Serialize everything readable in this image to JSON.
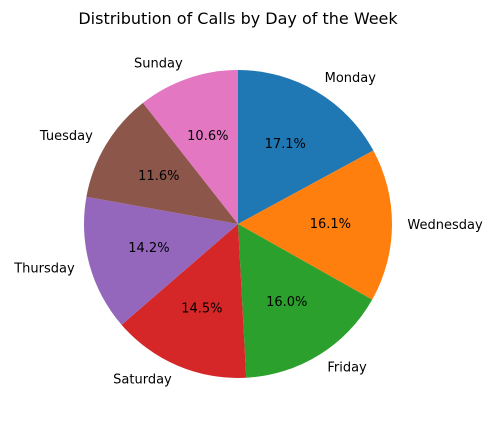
{
  "chart_data": {
    "type": "pie",
    "title": "Distribution of Calls by Day of the Week",
    "categories": [
      "Monday",
      "Wednesday",
      "Friday",
      "Saturday",
      "Thursday",
      "Tuesday",
      "Sunday"
    ],
    "values": [
      17.1,
      16.1,
      16.0,
      14.5,
      14.2,
      11.6,
      10.6
    ],
    "percent_labels": [
      "17.1%",
      "16.1%",
      "16.0%",
      "14.5%",
      "14.2%",
      "11.6%",
      "10.6%"
    ],
    "colors": [
      "#1f77b4",
      "#ff7f0e",
      "#2ca02c",
      "#d62728",
      "#9467bd",
      "#8c564b",
      "#e377c2"
    ],
    "start_angle_deg": 90,
    "direction": "clockwise",
    "legend": "none"
  }
}
